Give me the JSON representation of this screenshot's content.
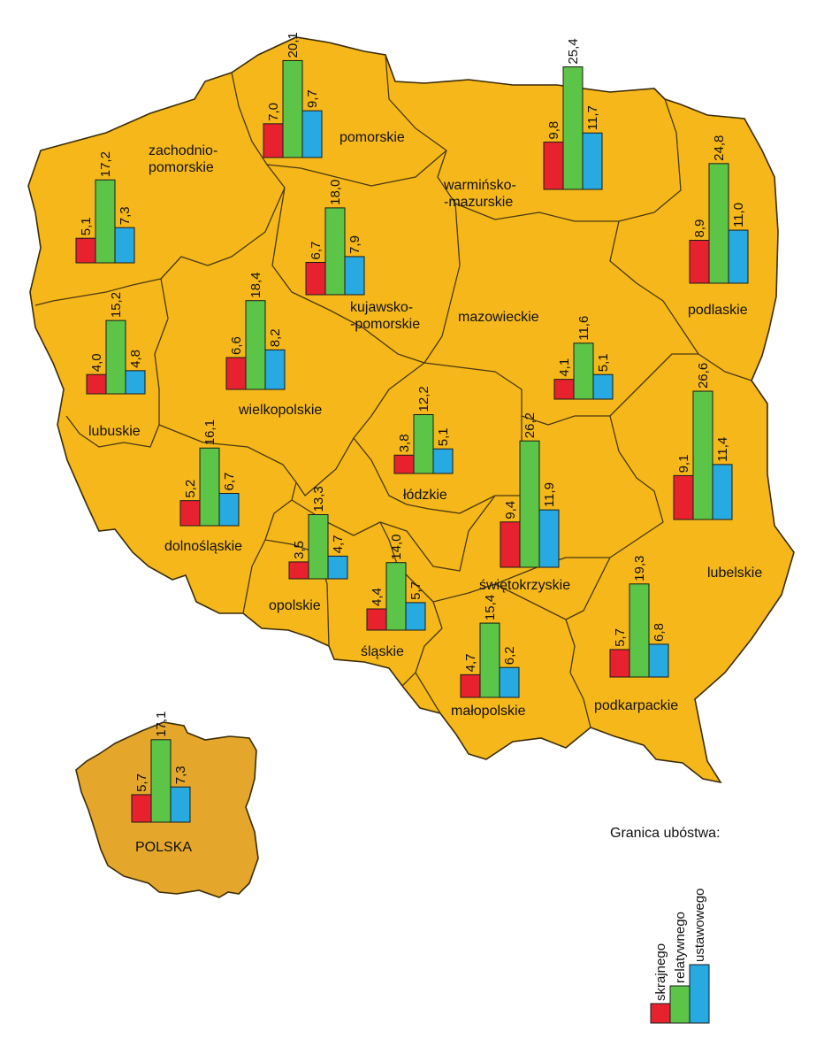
{
  "colors": {
    "land": "#f5b71a",
    "inset_land": "#e4a72c",
    "outline": "#3a2c08",
    "skrajnego": "#e8212e",
    "relatywnego": "#5cc447",
    "ustawowego": "#27a9e1"
  },
  "legend": {
    "title": "Granica ubóstwa:",
    "items": [
      {
        "label": "skrajnego",
        "color": "#e8212e"
      },
      {
        "label": "relatywnego",
        "color": "#5cc447"
      },
      {
        "label": "ustawowego",
        "color": "#27a9e1"
      }
    ]
  },
  "chart_data": {
    "type": "bar",
    "series_names": [
      "skrajnego",
      "relatywnego",
      "ustawowego"
    ],
    "regions": [
      {
        "name": "pomorskie",
        "values": [
          7.0,
          20.1,
          9.7
        ],
        "labels": [
          "7,0",
          "20,1",
          "9,7"
        ]
      },
      {
        "name": "warmińsko-mazurskie",
        "name_lines": [
          "warmińsko-",
          "-mazurskie"
        ],
        "values": [
          9.8,
          25.4,
          11.7
        ],
        "labels": [
          "9,8",
          "25,4",
          "11,7"
        ]
      },
      {
        "name": "zachodniopomorskie",
        "name_lines": [
          "zachodnio-",
          "pomorskie"
        ],
        "values": [
          5.1,
          17.2,
          7.3
        ],
        "labels": [
          "5,1",
          "17,2",
          "7,3"
        ]
      },
      {
        "name": "kujawsko-pomorskie",
        "name_lines": [
          "kujawsko-",
          "-pomorskie"
        ],
        "values": [
          6.7,
          18.0,
          7.9
        ],
        "labels": [
          "6,7",
          "18,0",
          "7,9"
        ]
      },
      {
        "name": "podlaskie",
        "values": [
          8.9,
          24.8,
          11.0
        ],
        "labels": [
          "8,9",
          "24,8",
          "11,0"
        ]
      },
      {
        "name": "lubuskie",
        "values": [
          4.0,
          15.2,
          4.8
        ],
        "labels": [
          "4,0",
          "15,2",
          "4,8"
        ]
      },
      {
        "name": "wielkopolskie",
        "values": [
          6.6,
          18.4,
          8.2
        ],
        "labels": [
          "6,6",
          "18,4",
          "8,2"
        ]
      },
      {
        "name": "mazowieckie",
        "values": [
          4.1,
          11.6,
          5.1
        ],
        "labels": [
          "4,1",
          "11,6",
          "5,1"
        ]
      },
      {
        "name": "łódzkie",
        "values": [
          3.8,
          12.2,
          5.1
        ],
        "labels": [
          "3,8",
          "12,2",
          "5,1"
        ]
      },
      {
        "name": "lubelskie",
        "values": [
          9.1,
          26.6,
          11.4
        ],
        "labels": [
          "9,1",
          "26,6",
          "11,4"
        ]
      },
      {
        "name": "dolnośląskie",
        "values": [
          5.2,
          16.1,
          6.7
        ],
        "labels": [
          "5,2",
          "16,1",
          "6,7"
        ]
      },
      {
        "name": "świętokrzyskie",
        "values": [
          9.4,
          26.2,
          11.9
        ],
        "labels": [
          "9,4",
          "26,2",
          "11,9"
        ]
      },
      {
        "name": "opolskie",
        "values": [
          3.5,
          13.3,
          4.7
        ],
        "labels": [
          "3,5",
          "13,3",
          "4,7"
        ]
      },
      {
        "name": "śląskie",
        "values": [
          4.4,
          14.0,
          5.7
        ],
        "labels": [
          "4,4",
          "14,0",
          "5,7"
        ]
      },
      {
        "name": "małopolskie",
        "values": [
          4.7,
          15.4,
          6.2
        ],
        "labels": [
          "4,7",
          "15,4",
          "6,2"
        ]
      },
      {
        "name": "podkarpackie",
        "values": [
          5.7,
          19.3,
          6.8
        ],
        "labels": [
          "5,7",
          "19,3",
          "6,8"
        ]
      },
      {
        "name": "POLSKA",
        "values": [
          5.7,
          17.1,
          7.3
        ],
        "labels": [
          "5,7",
          "17,1",
          "7,3"
        ]
      }
    ]
  }
}
